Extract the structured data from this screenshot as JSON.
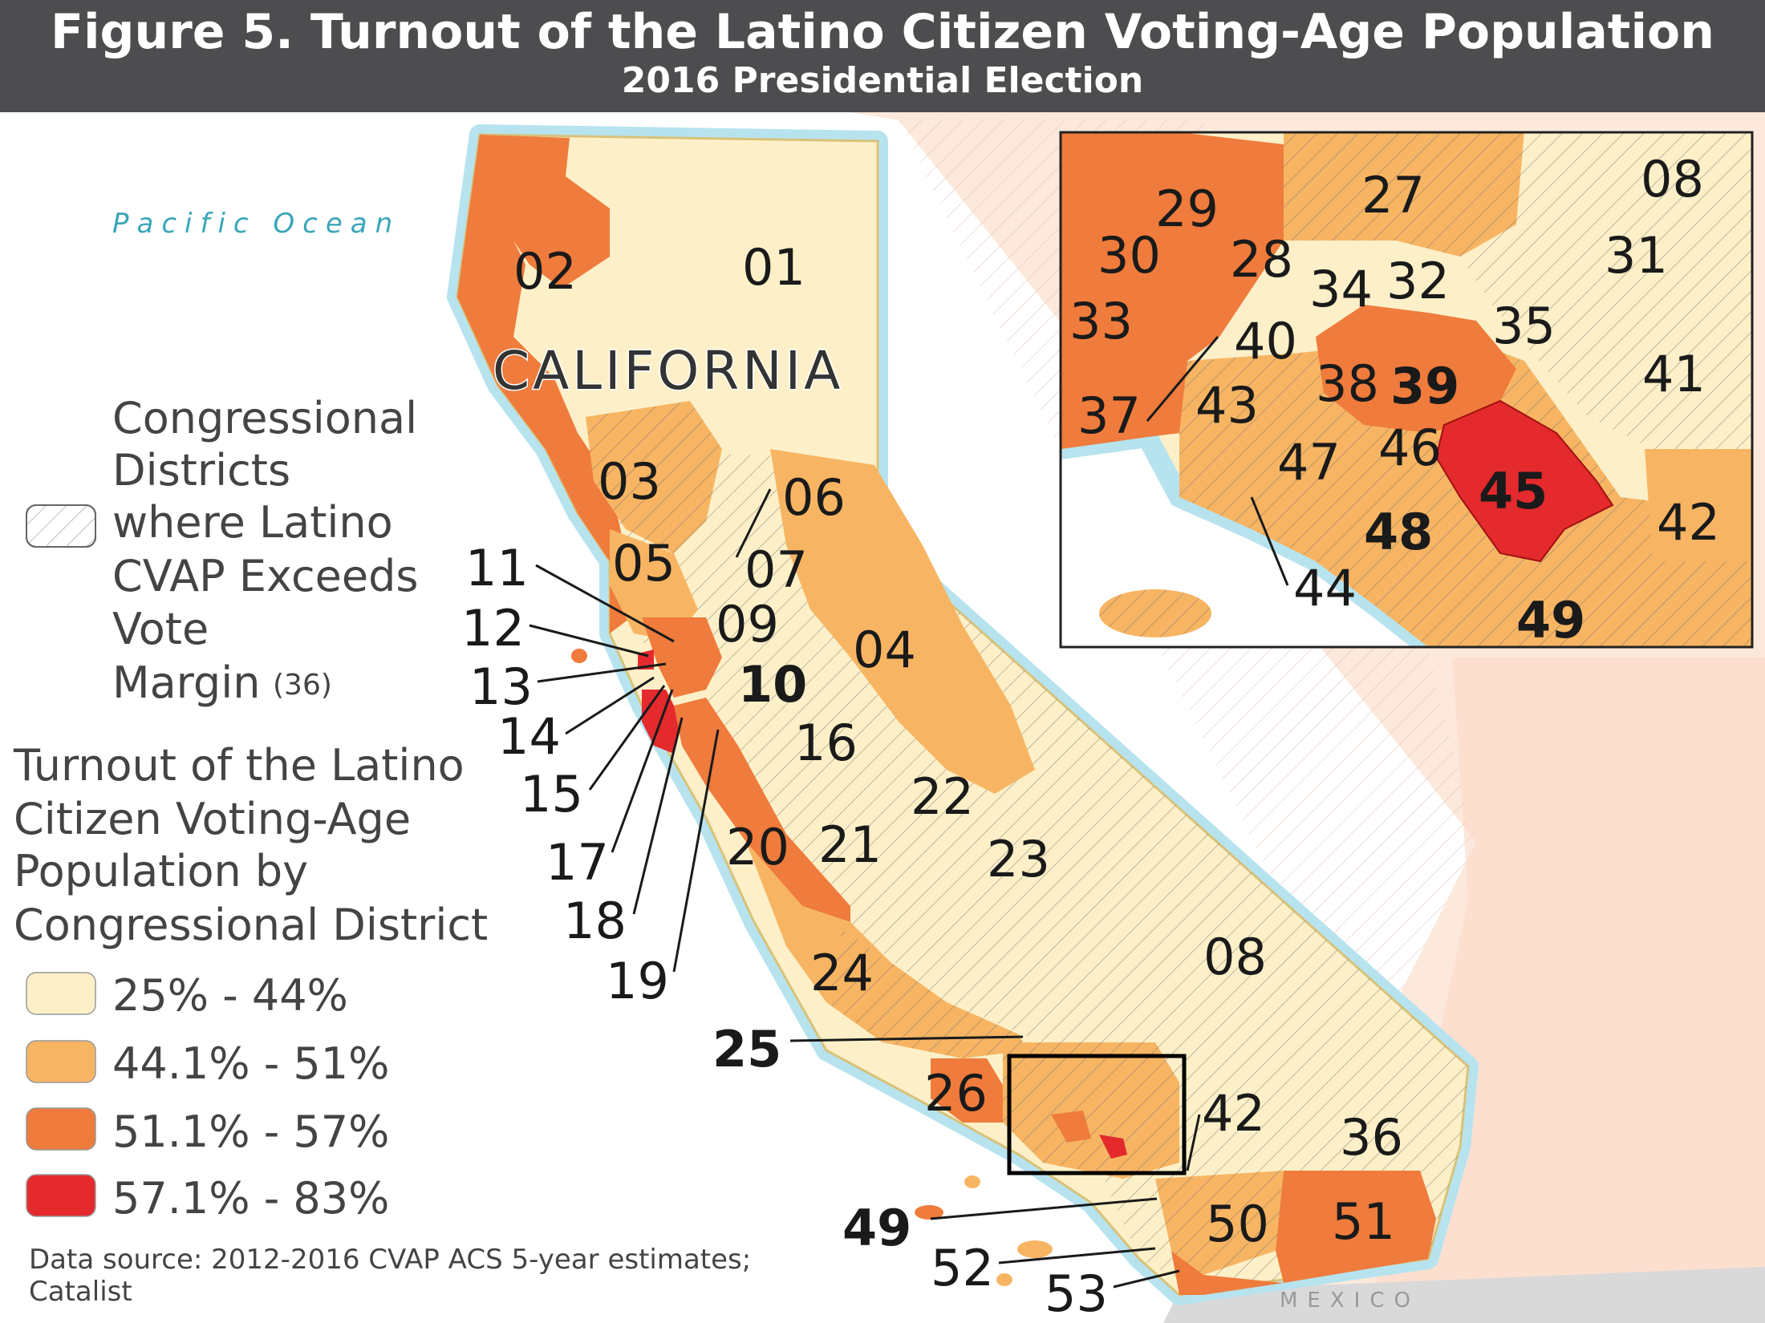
{
  "title": "Figure 5. Turnout of the Latino Citizen Voting-Age Population",
  "subtitle": "2016 Presidential Election",
  "map": {
    "ocean_label": "Pacific Ocean",
    "state_label": "CALIFORNIA",
    "country_label": "MEXICO"
  },
  "legend": {
    "hatch_lines": [
      "Congressional",
      "Districts",
      "where Latino",
      "CVAP Exceeds",
      "Vote",
      "Margin"
    ],
    "hatch_count": "(36)",
    "turnout_title_lines": [
      "Turnout of the Latino",
      "Citizen Voting-Age",
      "Population by",
      "Congressional District"
    ],
    "classes": [
      {
        "label": "25% - 44%",
        "color": "#fdf0c8"
      },
      {
        "label": "44.1% - 51%",
        "color": "#f7b563"
      },
      {
        "label": "51.1% - 57%",
        "color": "#ef7b3c"
      },
      {
        "label": "57.1% - 83%",
        "color": "#e42a2d"
      }
    ]
  },
  "source_lines": [
    "Data source: 2012-2016 CVAP ACS 5-year estimates;",
    "Catalist"
  ],
  "district_labels": {
    "d01": "01",
    "d02": "02",
    "d03": "03",
    "d04": "04",
    "d05": "05",
    "d06": "06",
    "d07": "07",
    "d08": "08",
    "d09": "09",
    "d10": "10",
    "d11": "11",
    "d12": "12",
    "d13": "13",
    "d14": "14",
    "d15": "15",
    "d16": "16",
    "d17": "17",
    "d18": "18",
    "d19": "19",
    "d20": "20",
    "d21": "21",
    "d22": "22",
    "d23": "23",
    "d24": "24",
    "d25": "25",
    "d26": "26",
    "d36": "36",
    "d42": "42",
    "d49": "49",
    "d50": "50",
    "d51": "51",
    "d52": "52",
    "d53": "53"
  },
  "inset_labels": {
    "i27": "27",
    "i08": "08",
    "i29": "29",
    "i30": "30",
    "i28": "28",
    "i34": "34",
    "i32": "32",
    "i31": "31",
    "i33": "33",
    "i35": "35",
    "i40": "40",
    "i41": "41",
    "i37": "37",
    "i43": "43",
    "i38": "38",
    "i39": "39",
    "i47": "47",
    "i46": "46",
    "i45": "45",
    "i42": "42",
    "i48": "48",
    "i44": "44",
    "i49": "49"
  }
}
